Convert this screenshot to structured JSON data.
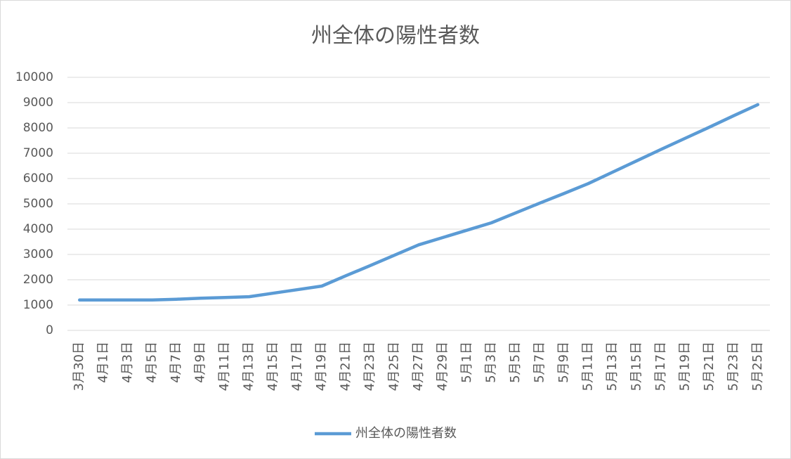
{
  "chart_data": {
    "type": "line",
    "title": "州全体の陽性者数",
    "categories": [
      "3月30日",
      "4月1日",
      "4月3日",
      "4月5日",
      "4月7日",
      "4月9日",
      "4月11日",
      "4月13日",
      "4月15日",
      "4月17日",
      "4月19日",
      "4月21日",
      "4月23日",
      "4月25日",
      "4月27日",
      "4月29日",
      "5月1日",
      "5月3日",
      "5月5日",
      "5月7日",
      "5月9日",
      "5月11日",
      "5月13日",
      "5月15日",
      "5月17日",
      "5月19日",
      "5月21日",
      "5月23日",
      "5月25日"
    ],
    "series": [
      {
        "name": "州全体の陽性者数",
        "color": "#5b9bd5",
        "values": [
          1200,
          1200,
          1200,
          1200,
          1230,
          1270,
          1300,
          1330,
          1470,
          1610,
          1750,
          2160,
          2560,
          2970,
          3380,
          3670,
          3960,
          4250,
          4640,
          5030,
          5410,
          5800,
          6250,
          6700,
          7150,
          7590,
          8030,
          8480,
          8920
        ]
      }
    ],
    "ylim": [
      0,
      10000
    ],
    "yticks": [
      0,
      1000,
      2000,
      3000,
      4000,
      5000,
      6000,
      7000,
      8000,
      9000,
      10000
    ],
    "grid": true,
    "legend": "bottom"
  }
}
